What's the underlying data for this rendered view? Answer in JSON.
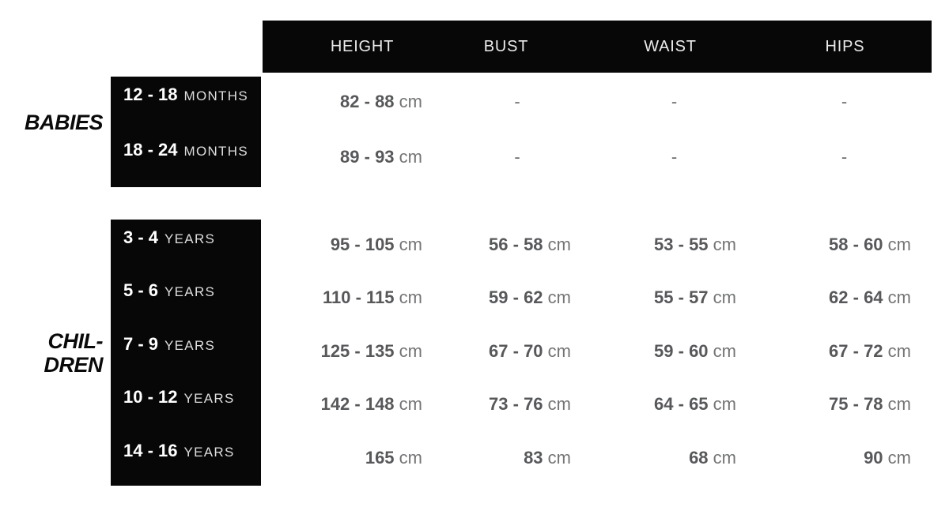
{
  "colors": {
    "bg": "#ffffff",
    "box_black": "#070707",
    "header_text": "#ebebeb",
    "label_number": "#ffffff",
    "label_unit": "#dedede",
    "value_number": "#57585a",
    "value_unit": "#737476",
    "dash": "#6a6b6d",
    "section_label": "#0a0a0a"
  },
  "chart_data": {
    "type": "table",
    "columns": [
      "HEIGHT",
      "BUST",
      "WAIST",
      "HIPS"
    ],
    "unit": "cm",
    "sections": [
      {
        "group": "BABIES",
        "group_lines": [
          "BABIES"
        ],
        "rows": [
          {
            "age_range": "12 - 18",
            "age_unit": "MONTHS",
            "cells": [
              {
                "num": "82 - 88",
                "unit": "cm"
              },
              "-",
              "-",
              "-"
            ]
          },
          {
            "age_range": "18 - 24",
            "age_unit": "MONTHS",
            "cells": [
              {
                "num": "89 - 93",
                "unit": "cm"
              },
              "-",
              "-",
              "-"
            ]
          }
        ]
      },
      {
        "group": "CHILDREN",
        "group_lines": [
          "CHIL-",
          "DREN"
        ],
        "rows": [
          {
            "age_range": "3 - 4",
            "age_unit": "YEARS",
            "cells": [
              {
                "num": "95 - 105",
                "unit": "cm"
              },
              {
                "num": "56 - 58",
                "unit": "cm"
              },
              {
                "num": "53 - 55",
                "unit": "cm"
              },
              {
                "num": "58 - 60",
                "unit": "cm"
              }
            ]
          },
          {
            "age_range": "5 - 6",
            "age_unit": "YEARS",
            "cells": [
              {
                "num": "110 - 115",
                "unit": "cm"
              },
              {
                "num": "59 - 62",
                "unit": "cm"
              },
              {
                "num": "55 - 57",
                "unit": "cm"
              },
              {
                "num": "62 - 64",
                "unit": "cm"
              }
            ]
          },
          {
            "age_range": "7 - 9",
            "age_unit": "YEARS",
            "cells": [
              {
                "num": "125 - 135",
                "unit": "cm"
              },
              {
                "num": "67 - 70",
                "unit": "cm"
              },
              {
                "num": "59 - 60",
                "unit": "cm"
              },
              {
                "num": "67 - 72",
                "unit": "cm"
              }
            ]
          },
          {
            "age_range": "10 - 12",
            "age_unit": "YEARS",
            "cells": [
              {
                "num": "142 - 148",
                "unit": "cm"
              },
              {
                "num": "73 - 76",
                "unit": "cm"
              },
              {
                "num": "64 - 65",
                "unit": "cm"
              },
              {
                "num": "75 - 78",
                "unit": "cm"
              }
            ]
          },
          {
            "age_range": "14 - 16",
            "age_unit": "YEARS",
            "cells": [
              {
                "num": "165",
                "unit": "cm"
              },
              {
                "num": "83",
                "unit": "cm"
              },
              {
                "num": "68",
                "unit": "cm"
              },
              {
                "num": "90",
                "unit": "cm"
              }
            ]
          }
        ]
      }
    ]
  }
}
